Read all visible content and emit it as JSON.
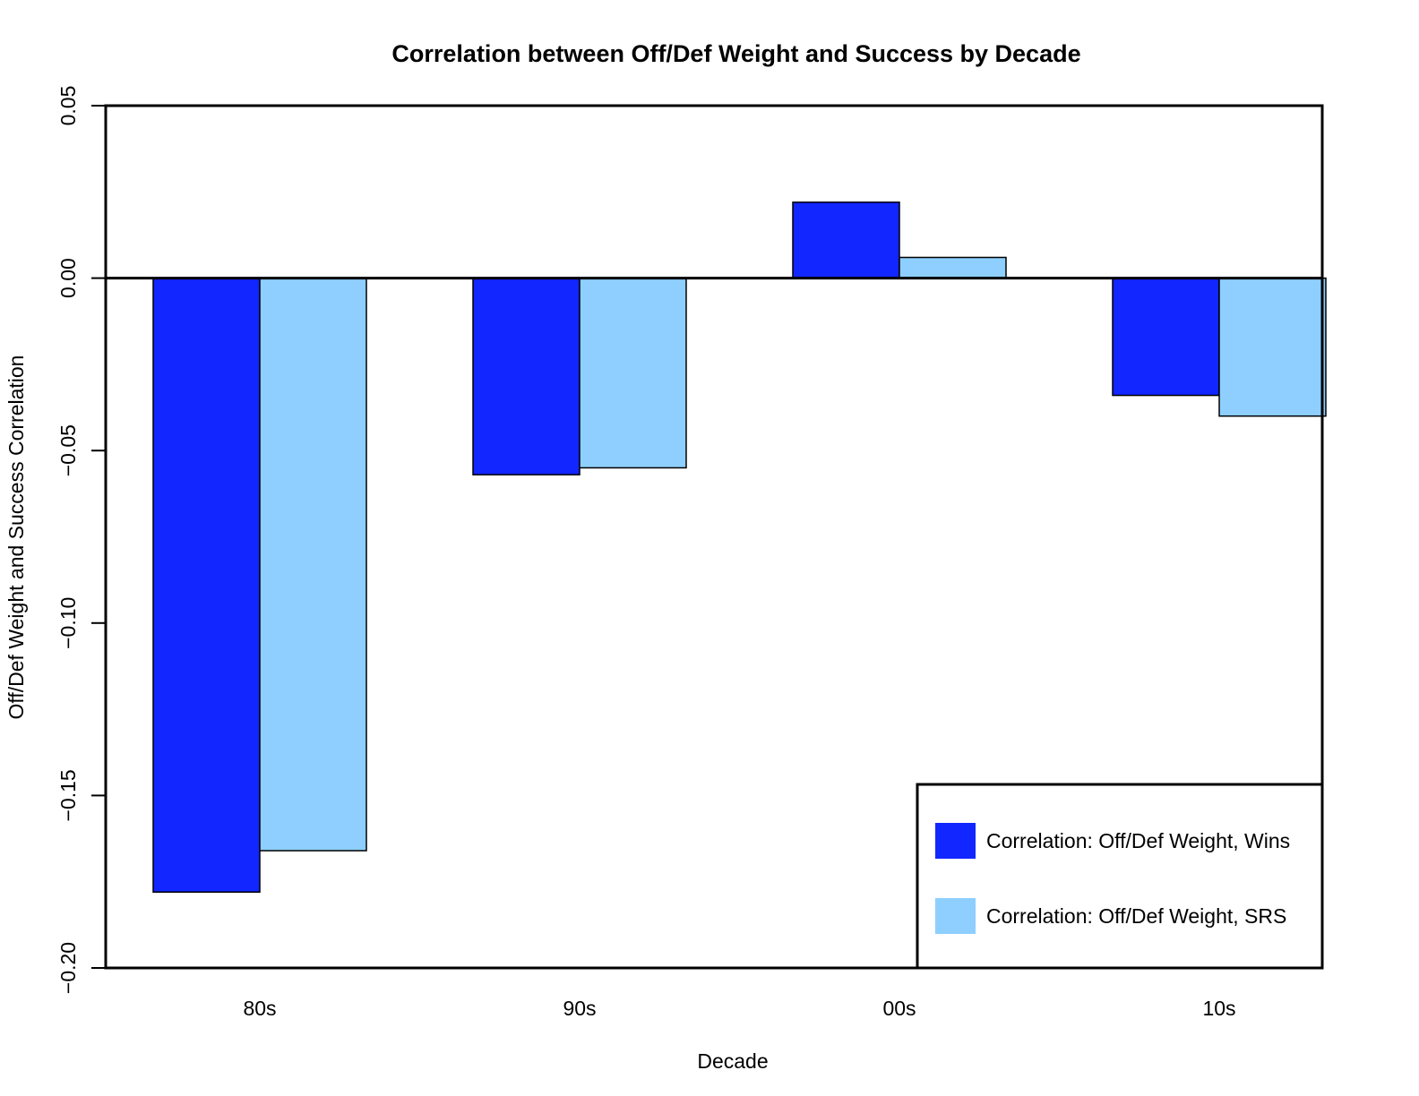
{
  "chart_data": {
    "type": "bar",
    "title": "Correlation between Off/Def Weight and Success by Decade",
    "xlabel": "Decade",
    "ylabel": "Off/Def Weight and Success Correlation",
    "categories": [
      "80s",
      "90s",
      "00s",
      "10s"
    ],
    "series": [
      {
        "name": "Correlation: Off/Def Weight, Wins",
        "color": "#1226FF",
        "values": [
          -0.178,
          -0.057,
          0.022,
          -0.034
        ]
      },
      {
        "name": "Correlation: Off/Def Weight, SRS",
        "color": "#8ECFFF",
        "values": [
          -0.166,
          -0.055,
          0.006,
          -0.04
        ]
      }
    ],
    "ylim": [
      -0.2,
      0.05
    ],
    "yticks": [
      -0.2,
      -0.15,
      -0.1,
      -0.05,
      0.0,
      0.05
    ],
    "ytick_labels": [
      "−0.20",
      "−0.15",
      "−0.10",
      "−0.05",
      "0.00",
      "0.05"
    ],
    "grid": false,
    "legend_position": "bottom-right",
    "zero_line": true
  }
}
